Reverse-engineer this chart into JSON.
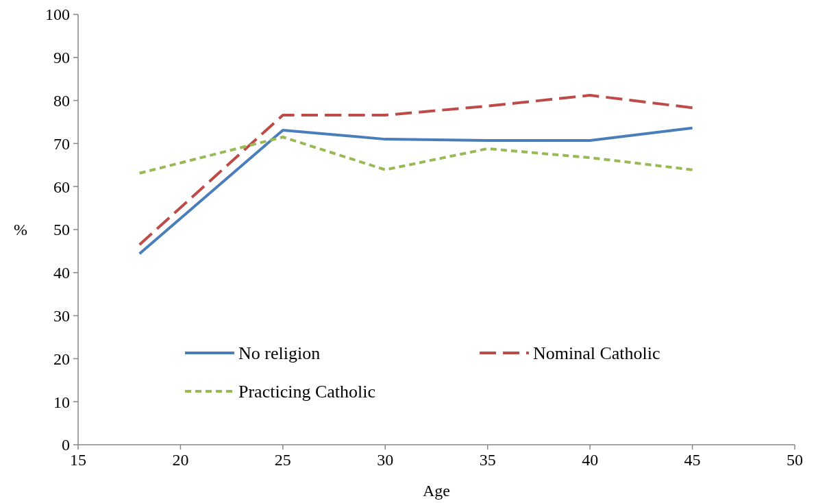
{
  "chart_data": {
    "type": "line",
    "xlabel": "Age",
    "ylabel": "%",
    "x": [
      18,
      25,
      30,
      35,
      40,
      45
    ],
    "xlim": [
      15,
      50
    ],
    "xticks": [
      15,
      20,
      25,
      30,
      35,
      40,
      45,
      50
    ],
    "ylim": [
      0,
      100
    ],
    "yticks": [
      0,
      10,
      20,
      30,
      40,
      50,
      60,
      70,
      80,
      90,
      100
    ],
    "grid": false,
    "legend": "bottom",
    "marker": "none",
    "series": [
      {
        "name": "No religion",
        "color": "#4a7ebb",
        "line_style": "solid",
        "values": [
          44.4,
          73.1,
          71.0,
          70.7,
          70.7,
          73.6
        ]
      },
      {
        "name": "Nominal Catholic",
        "color": "#be4b48",
        "line_style": "dashed",
        "values": [
          46.5,
          76.6,
          76.6,
          78.7,
          81.2,
          78.3
        ]
      },
      {
        "name": "Practicing Catholic",
        "color": "#98b954",
        "line_style": "dotted",
        "values": [
          63.1,
          71.5,
          63.9,
          68.8,
          66.7,
          63.9
        ]
      }
    ]
  }
}
